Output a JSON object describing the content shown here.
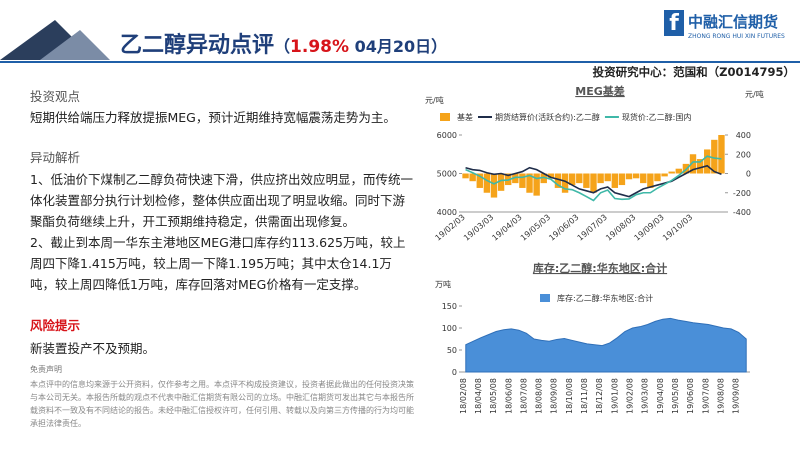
{
  "header": {
    "title": "乙二醇异动点评",
    "title_open": "（",
    "change": "1.98%",
    "title_close": " 04月20日）",
    "author": "投资研究中心：范国和（Z0014795）",
    "logo_cn": "中融汇信期货",
    "logo_en": "ZHONG RONG HUI XIN FUTURES"
  },
  "body": {
    "view_heading": "投资观点",
    "view_text": "短期供给端压力释放提振MEG，预计近期维持宽幅震荡走势为主。",
    "analysis_heading": "异动解析",
    "analysis_1": "1、低油价下煤制乙二醇负荷快速下滑，供应挤出效应明显，而传统一体化装置部分执行计划检修，整体供应面出现了明显收缩。同时下游聚酯负荷继续上升，开工预期维持稳定，供需面出现修复。",
    "analysis_2": "2、截止到本周一华东主港地区MEG港口库存约113.625万吨，较上周四下降1.415万吨，较上周一下降1.195万吨；其中太仓14.1万吨，较上周四降低1万吨，库存回落对MEG价格有一定支撑。",
    "risk_heading": "风险提示",
    "risk_text": "新装置投产不及预期。",
    "disclaimer_heading": "免责声明",
    "disclaimer_text": "本点评中的信息均来源于公开资料，仅作参考之用。本点评不构成投资建议，投资者据此做出的任何投资决策与本公司无关。本报告所载的观点不代表中融汇信期货有限公司的立场。中融汇信期货可发出其它与本报告所载资料不一致及有不同结论的报告。未经中融汇信授权许可，任何引用、转载以及向第三方传播的行为均可能承担法律责任。"
  },
  "chart_data": [
    {
      "type": "bar-line",
      "title": "MEG基差",
      "y_label": "元/吨",
      "y2_label": "元/吨",
      "categories": [
        "19/02/03",
        null,
        null,
        null,
        "19/03/03",
        null,
        null,
        null,
        "19/04/03",
        null,
        null,
        null,
        "19/05/03",
        null,
        null,
        null,
        "19/06/03",
        null,
        null,
        null,
        "19/07/03",
        null,
        null,
        null,
        "19/08/03",
        null,
        null,
        null,
        "19/09/03",
        null,
        null,
        null,
        "19/10/03",
        null,
        null,
        null,
        null
      ],
      "series": [
        {
          "name": "基差",
          "type": "bar",
          "axis": "y2",
          "color": "#f5a31a",
          "values": [
            -50,
            -80,
            -150,
            -200,
            -250,
            -180,
            -120,
            -100,
            -150,
            -200,
            -230,
            -100,
            -50,
            -150,
            -200,
            -120,
            -100,
            -150,
            -200,
            -100,
            -80,
            -150,
            -120,
            -60,
            -50,
            -100,
            -150,
            -80,
            -30,
            20,
            50,
            100,
            200,
            150,
            250,
            350,
            400
          ]
        },
        {
          "name": "期货结算价(活跃合约):乙二醇",
          "type": "line",
          "color": "#1f2d4a",
          "values": [
            5150,
            5100,
            5080,
            5020,
            4980,
            5000,
            4950,
            5000,
            5050,
            5150,
            5100,
            5000,
            4900,
            4850,
            4800,
            4700,
            4600,
            4550,
            4500,
            4600,
            4650,
            4500,
            4450,
            4400,
            4500,
            4600,
            4650,
            4700,
            4750,
            4800,
            4900,
            5000,
            5100,
            5150,
            5200,
            5050,
            4980
          ]
        },
        {
          "name": "现货价:乙二醇:国内",
          "type": "line",
          "color": "#3fb8a8",
          "values": [
            5100,
            5020,
            4930,
            4820,
            4730,
            4820,
            4830,
            4900,
            4900,
            4950,
            4870,
            4900,
            4850,
            4700,
            4600,
            4580,
            4500,
            4400,
            4300,
            4500,
            4570,
            4350,
            4330,
            4340,
            4450,
            4500,
            4500,
            4620,
            4720,
            4820,
            4950,
            5100,
            5300,
            5300,
            5450,
            5400,
            5380
          ]
        }
      ],
      "ylim": [
        4000,
        6000
      ],
      "yticks": [
        4000,
        5000,
        6000
      ],
      "y2lim": [
        -400,
        400
      ],
      "y2ticks": [
        -400,
        -200,
        0,
        200,
        400
      ],
      "grid": false
    },
    {
      "type": "area",
      "title": "库存:乙二醇:华东地区:合计",
      "y_label": "万吨",
      "categories": [
        "18/02/08",
        null,
        "18/04/08",
        null,
        "18/05/08",
        null,
        "18/06/08",
        null,
        "18/07/08",
        null,
        "18/08/08",
        null,
        "18/09/08",
        null,
        "18/10/08",
        null,
        "18/11/08",
        null,
        "18/12/08",
        null,
        "19/01/08",
        null,
        "19/02/08",
        null,
        "19/03/08",
        null,
        "19/04/08",
        null,
        "19/05/08",
        null,
        "19/06/08",
        null,
        "19/07/08",
        null,
        "19/08/08",
        null,
        "19/09/08",
        null
      ],
      "series": [
        {
          "name": "库存:乙二醇:华东地区:合计",
          "color": "#4a8fd8",
          "values": [
            62,
            70,
            78,
            85,
            92,
            96,
            98,
            95,
            88,
            75,
            72,
            70,
            74,
            76,
            72,
            68,
            64,
            62,
            60,
            66,
            78,
            92,
            100,
            103,
            108,
            115,
            120,
            122,
            118,
            115,
            112,
            110,
            108,
            104,
            100,
            98,
            90,
            75
          ]
        }
      ],
      "ylim": [
        0,
        150
      ],
      "yticks": [
        0,
        50,
        100,
        150
      ],
      "grid": false
    }
  ]
}
